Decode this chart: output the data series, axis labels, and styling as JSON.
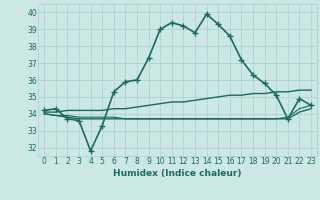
{
  "xlabel": "Humidex (Indice chaleur)",
  "xlim": [
    -0.5,
    23.5
  ],
  "ylim": [
    31.5,
    40.5
  ],
  "yticks": [
    32,
    33,
    34,
    35,
    36,
    37,
    38,
    39,
    40
  ],
  "xticks": [
    0,
    1,
    2,
    3,
    4,
    5,
    6,
    7,
    8,
    9,
    10,
    11,
    12,
    13,
    14,
    15,
    16,
    17,
    18,
    19,
    20,
    21,
    22,
    23
  ],
  "bg_color": "#cce8e4",
  "grid_color": "#aacfcb",
  "line_color": "#1a6b5e",
  "curves": [
    {
      "x": [
        0,
        1,
        2,
        3,
        4,
        5,
        6,
        7,
        8,
        9,
        10,
        11,
        12,
        13,
        14,
        15,
        16,
        17,
        18,
        19,
        20,
        21,
        22,
        23
      ],
      "y": [
        34.2,
        34.3,
        33.7,
        33.6,
        31.8,
        33.3,
        35.3,
        35.9,
        36.0,
        37.3,
        39.0,
        39.4,
        39.2,
        38.8,
        39.9,
        39.3,
        38.6,
        37.2,
        36.3,
        35.8,
        35.1,
        33.7,
        34.9,
        34.5
      ],
      "marker": "+",
      "lw": 1.2,
      "ms": 4,
      "mew": 1.0
    },
    {
      "x": [
        0,
        1,
        2,
        3,
        4,
        5,
        6,
        7,
        8,
        9,
        10,
        11,
        12,
        13,
        14,
        15,
        16,
        17,
        18,
        19,
        20,
        21,
        22,
        23
      ],
      "y": [
        34.1,
        34.1,
        34.2,
        34.2,
        34.2,
        34.2,
        34.3,
        34.3,
        34.4,
        34.5,
        34.6,
        34.7,
        34.7,
        34.8,
        34.9,
        35.0,
        35.1,
        35.1,
        35.2,
        35.2,
        35.3,
        35.3,
        35.4,
        35.4
      ],
      "marker": null,
      "lw": 1.0,
      "ms": 0,
      "mew": 0
    },
    {
      "x": [
        0,
        1,
        2,
        3,
        4,
        5,
        6,
        7,
        8,
        9,
        10,
        11,
        12,
        13,
        14,
        15,
        16,
        17,
        18,
        19,
        20,
        21,
        22,
        23
      ],
      "y": [
        34.0,
        33.9,
        33.8,
        33.7,
        33.7,
        33.7,
        33.7,
        33.7,
        33.7,
        33.7,
        33.7,
        33.7,
        33.7,
        33.7,
        33.7,
        33.7,
        33.7,
        33.7,
        33.7,
        33.7,
        33.7,
        33.7,
        34.1,
        34.3
      ],
      "marker": null,
      "lw": 1.0,
      "ms": 0,
      "mew": 0
    },
    {
      "x": [
        0,
        1,
        2,
        3,
        4,
        5,
        6,
        7,
        8,
        9,
        10,
        11,
        12,
        13,
        14,
        15,
        16,
        17,
        18,
        19,
        20,
        21,
        22,
        23
      ],
      "y": [
        34.0,
        33.9,
        33.9,
        33.8,
        33.8,
        33.8,
        33.8,
        33.7,
        33.7,
        33.7,
        33.7,
        33.7,
        33.7,
        33.7,
        33.7,
        33.7,
        33.7,
        33.7,
        33.7,
        33.7,
        33.7,
        33.8,
        34.3,
        34.5
      ],
      "marker": null,
      "lw": 0.8,
      "ms": 0,
      "mew": 0
    }
  ]
}
